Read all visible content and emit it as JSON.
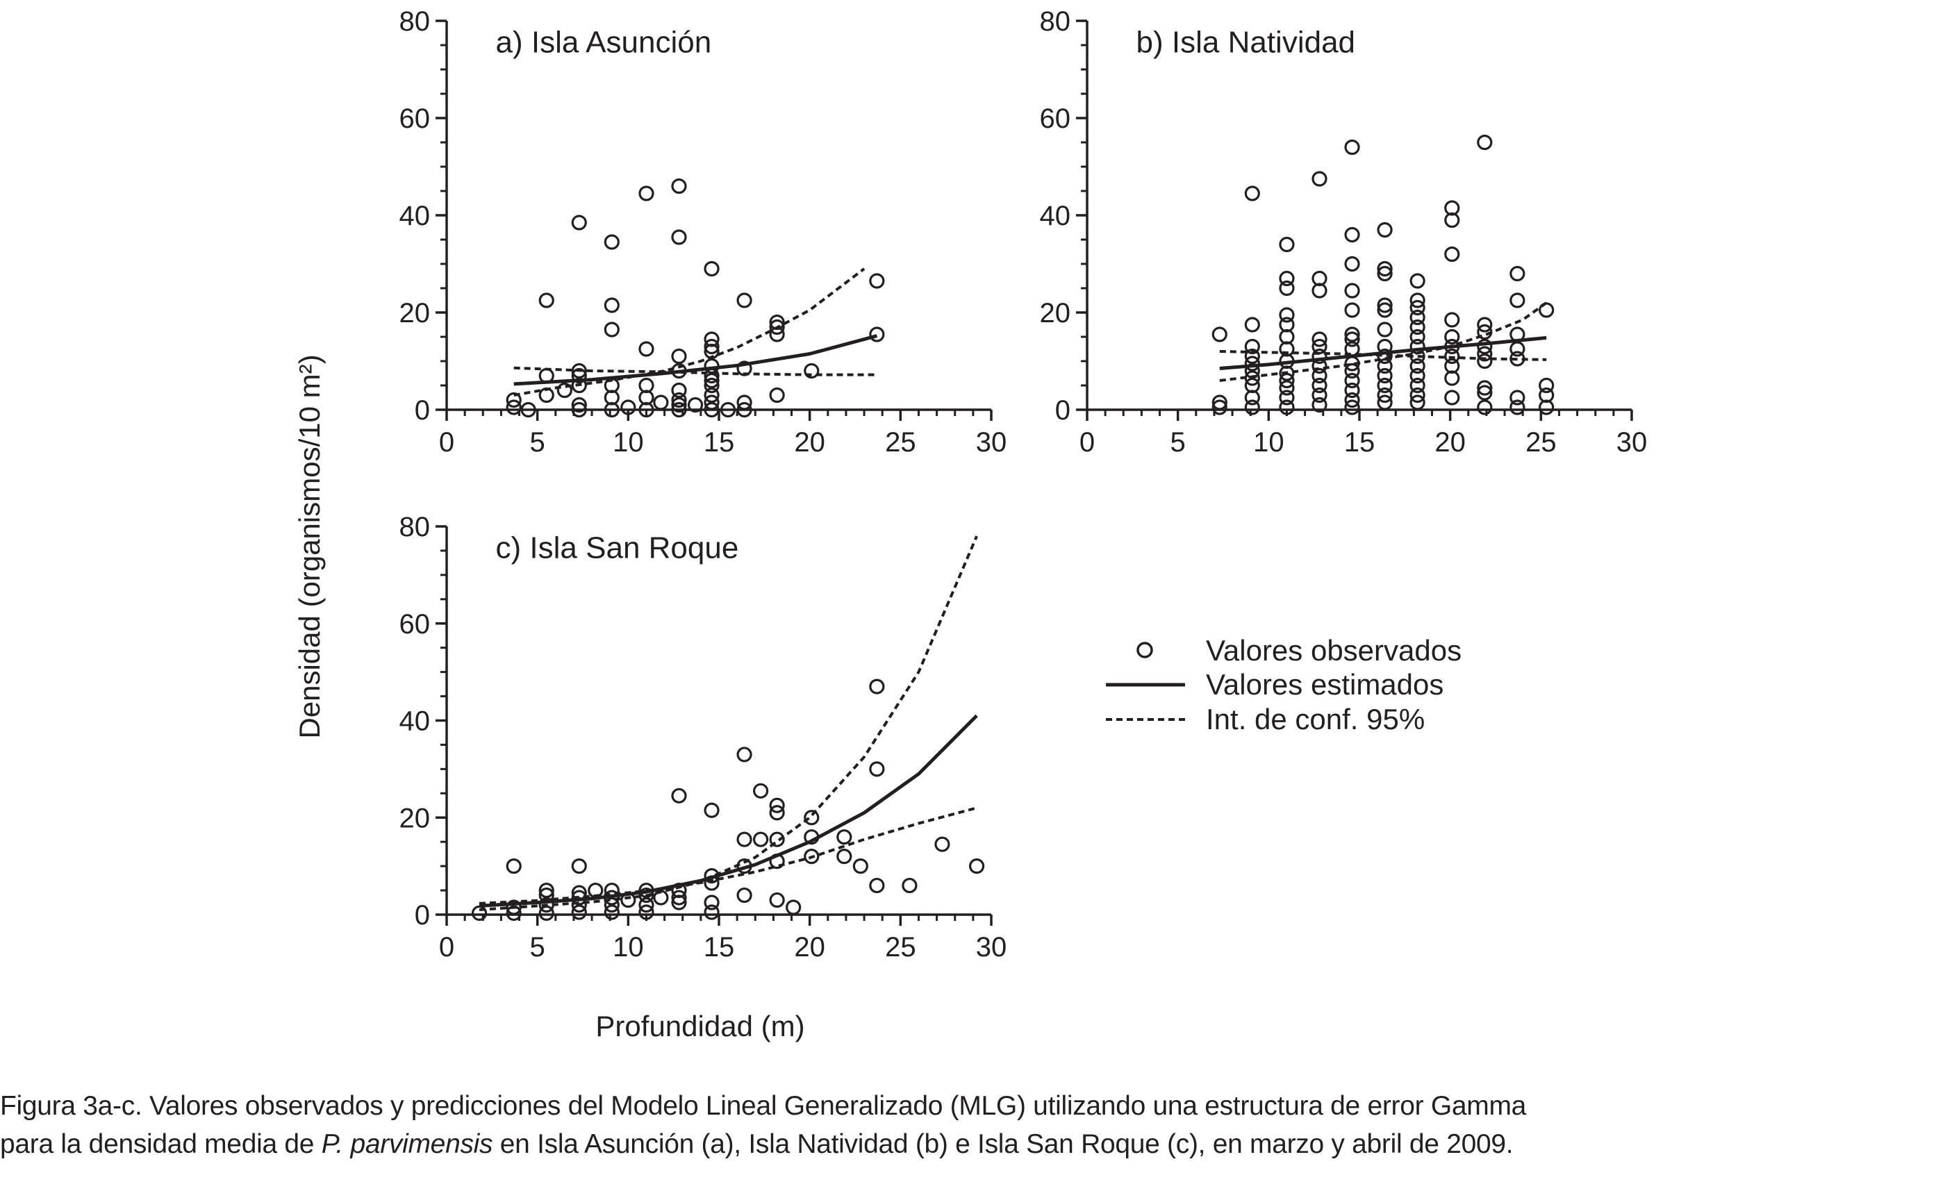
{
  "chart_data": [
    {
      "id": "a",
      "type": "scatter",
      "title": "a) Isla Asunción",
      "xlim": [
        0,
        30
      ],
      "ylim": [
        0,
        80
      ],
      "xticks": [
        "0",
        "5",
        "10",
        "15",
        "20",
        "25",
        "30"
      ],
      "yticks": [
        "0",
        "20",
        "40",
        "60",
        "80"
      ],
      "observed": [
        [
          3.7,
          2
        ],
        [
          3.7,
          0.5
        ],
        [
          4.5,
          0
        ],
        [
          5.5,
          3
        ],
        [
          5.5,
          7
        ],
        [
          5.5,
          22.5
        ],
        [
          6.5,
          4
        ],
        [
          7.3,
          38.5
        ],
        [
          7.3,
          8
        ],
        [
          7.3,
          7
        ],
        [
          7.3,
          5
        ],
        [
          7.3,
          1
        ],
        [
          7.3,
          0
        ],
        [
          9.1,
          34.5
        ],
        [
          9.1,
          21.5
        ],
        [
          9.1,
          16.5
        ],
        [
          9.1,
          5
        ],
        [
          9.1,
          2.5
        ],
        [
          9.1,
          0
        ],
        [
          10,
          0.5
        ],
        [
          11,
          44.5
        ],
        [
          11,
          12.5
        ],
        [
          11,
          5
        ],
        [
          11,
          2.5
        ],
        [
          11,
          0
        ],
        [
          11.8,
          1.5
        ],
        [
          12.8,
          46
        ],
        [
          12.8,
          35.5
        ],
        [
          12.8,
          11
        ],
        [
          12.8,
          8
        ],
        [
          12.8,
          4
        ],
        [
          12.8,
          2
        ],
        [
          12.8,
          1
        ],
        [
          12.8,
          0
        ],
        [
          13.7,
          1
        ],
        [
          14.6,
          29
        ],
        [
          14.6,
          14.5
        ],
        [
          14.6,
          13
        ],
        [
          14.6,
          12
        ],
        [
          14.6,
          9
        ],
        [
          14.6,
          7
        ],
        [
          14.6,
          6
        ],
        [
          14.6,
          5
        ],
        [
          14.6,
          3
        ],
        [
          14.6,
          1.5
        ],
        [
          14.6,
          0
        ],
        [
          15.5,
          0
        ],
        [
          16.4,
          22.5
        ],
        [
          16.4,
          8.5
        ],
        [
          16.4,
          1.5
        ],
        [
          16.4,
          0
        ],
        [
          18.2,
          18
        ],
        [
          18.2,
          17
        ],
        [
          18.2,
          15.5
        ],
        [
          18.2,
          3
        ],
        [
          20.1,
          8
        ],
        [
          23.7,
          26.5
        ],
        [
          23.7,
          15.5
        ]
      ],
      "estimated": [
        [
          3.7,
          5.3
        ],
        [
          8,
          6.2
        ],
        [
          12,
          7.5
        ],
        [
          16,
          9.1
        ],
        [
          20,
          11.5
        ],
        [
          23.7,
          15.2
        ]
      ],
      "ci_upper": [
        [
          3.7,
          3.0
        ],
        [
          6,
          4.5
        ],
        [
          9,
          6.0
        ],
        [
          12,
          8.0
        ],
        [
          14,
          10.0
        ],
        [
          16,
          12.8
        ],
        [
          18,
          16.5
        ],
        [
          20,
          20.5
        ],
        [
          23,
          29.0
        ]
      ],
      "ci_lower": [
        [
          3.7,
          8.6
        ],
        [
          8,
          8.0
        ],
        [
          12,
          7.8
        ],
        [
          16,
          7.4
        ],
        [
          20,
          7.2
        ],
        [
          23.7,
          7.2
        ]
      ]
    },
    {
      "id": "b",
      "type": "scatter",
      "title": "b) Isla Natividad",
      "xlim": [
        0,
        30
      ],
      "ylim": [
        0,
        80
      ],
      "xticks": [
        "0",
        "5",
        "10",
        "15",
        "20",
        "25",
        "30"
      ],
      "yticks": [
        "0",
        "20",
        "40",
        "60",
        "80"
      ],
      "observed": [
        [
          7.3,
          15.5
        ],
        [
          7.3,
          1.5
        ],
        [
          7.3,
          0.5
        ],
        [
          9.1,
          44.5
        ],
        [
          9.1,
          17.5
        ],
        [
          9.1,
          13
        ],
        [
          9.1,
          11
        ],
        [
          9.1,
          9.5
        ],
        [
          9.1,
          8
        ],
        [
          9.1,
          6.5
        ],
        [
          9.1,
          5
        ],
        [
          9.1,
          2.5
        ],
        [
          9.1,
          0.5
        ],
        [
          11,
          34
        ],
        [
          11,
          27
        ],
        [
          11,
          25
        ],
        [
          11,
          19.5
        ],
        [
          11,
          17.5
        ],
        [
          11,
          15
        ],
        [
          11,
          12.5
        ],
        [
          11,
          10
        ],
        [
          11,
          7.5
        ],
        [
          11,
          6
        ],
        [
          11,
          4.5
        ],
        [
          11,
          2.5
        ],
        [
          11,
          0.5
        ],
        [
          12.8,
          47.5
        ],
        [
          12.8,
          27
        ],
        [
          12.8,
          24.5
        ],
        [
          12.8,
          14.5
        ],
        [
          12.8,
          13
        ],
        [
          12.8,
          11
        ],
        [
          12.8,
          9
        ],
        [
          12.8,
          7
        ],
        [
          12.8,
          5
        ],
        [
          12.8,
          3
        ],
        [
          12.8,
          1
        ],
        [
          14.6,
          54
        ],
        [
          14.6,
          36
        ],
        [
          14.6,
          30
        ],
        [
          14.6,
          24.5
        ],
        [
          14.6,
          20.5
        ],
        [
          14.6,
          15.5
        ],
        [
          14.6,
          14.5
        ],
        [
          14.6,
          12.5
        ],
        [
          14.6,
          9.5
        ],
        [
          14.6,
          8
        ],
        [
          14.6,
          6
        ],
        [
          14.6,
          4
        ],
        [
          14.6,
          2
        ],
        [
          14.6,
          0.5
        ],
        [
          16.4,
          37
        ],
        [
          16.4,
          29
        ],
        [
          16.4,
          28
        ],
        [
          16.4,
          21.5
        ],
        [
          16.4,
          20.5
        ],
        [
          16.4,
          16.5
        ],
        [
          16.4,
          13
        ],
        [
          16.4,
          11
        ],
        [
          16.4,
          9
        ],
        [
          16.4,
          7
        ],
        [
          16.4,
          5
        ],
        [
          16.4,
          3
        ],
        [
          16.4,
          1.5
        ],
        [
          18.2,
          26.5
        ],
        [
          18.2,
          22.5
        ],
        [
          18.2,
          21
        ],
        [
          18.2,
          19
        ],
        [
          18.2,
          17
        ],
        [
          18.2,
          15
        ],
        [
          18.2,
          13
        ],
        [
          18.2,
          11
        ],
        [
          18.2,
          9
        ],
        [
          18.2,
          7
        ],
        [
          18.2,
          5
        ],
        [
          18.2,
          3
        ],
        [
          18.2,
          1.5
        ],
        [
          20.1,
          41.5
        ],
        [
          20.1,
          39
        ],
        [
          20.1,
          32
        ],
        [
          20.1,
          18.5
        ],
        [
          20.1,
          15
        ],
        [
          20.1,
          13
        ],
        [
          20.1,
          11
        ],
        [
          20.1,
          9
        ],
        [
          20.1,
          6.5
        ],
        [
          20.1,
          2.5
        ],
        [
          21.9,
          55
        ],
        [
          21.9,
          17.5
        ],
        [
          21.9,
          16
        ],
        [
          21.9,
          13
        ],
        [
          21.9,
          11.5
        ],
        [
          21.9,
          10
        ],
        [
          21.9,
          4.5
        ],
        [
          21.9,
          3.5
        ],
        [
          21.9,
          0.5
        ],
        [
          23.7,
          28
        ],
        [
          23.7,
          22.5
        ],
        [
          23.7,
          15.5
        ],
        [
          23.7,
          12.5
        ],
        [
          23.7,
          10.5
        ],
        [
          23.7,
          2.5
        ],
        [
          23.7,
          0.5
        ],
        [
          25.3,
          20.5
        ],
        [
          25.3,
          5
        ],
        [
          25.3,
          3
        ],
        [
          25.3,
          0.5
        ]
      ],
      "estimated": [
        [
          7.3,
          8.5
        ],
        [
          10,
          9.3
        ],
        [
          14,
          10.8
        ],
        [
          18,
          12.3
        ],
        [
          22,
          13.6
        ],
        [
          25.3,
          14.8
        ]
      ],
      "ci_upper": [
        [
          7.3,
          6.0
        ],
        [
          10,
          7.2
        ],
        [
          14,
          9.0
        ],
        [
          18,
          11.5
        ],
        [
          20,
          13.0
        ],
        [
          22,
          15.5
        ],
        [
          24,
          18.5
        ],
        [
          25.3,
          22.0
        ]
      ],
      "ci_lower": [
        [
          7.3,
          12.0
        ],
        [
          10,
          11.8
        ],
        [
          14,
          11.5
        ],
        [
          18,
          11.0
        ],
        [
          22,
          10.5
        ],
        [
          25.3,
          10.3
        ]
      ]
    },
    {
      "id": "c",
      "type": "scatter",
      "title": "c) Isla San Roque",
      "xlim": [
        0,
        30
      ],
      "ylim": [
        0,
        80
      ],
      "xticks": [
        "0",
        "5",
        "10",
        "15",
        "20",
        "25",
        "30"
      ],
      "yticks": [
        "0",
        "20",
        "40",
        "60",
        "80"
      ],
      "observed": [
        [
          1.8,
          0.3
        ],
        [
          3.7,
          10
        ],
        [
          3.7,
          1.5
        ],
        [
          3.7,
          0.3
        ],
        [
          5.5,
          5
        ],
        [
          5.5,
          4
        ],
        [
          5.5,
          2
        ],
        [
          5.5,
          0.3
        ],
        [
          7.3,
          10
        ],
        [
          7.3,
          4.5
        ],
        [
          7.3,
          3.5
        ],
        [
          7.3,
          2
        ],
        [
          7.3,
          0.5
        ],
        [
          8.2,
          5
        ],
        [
          9.1,
          5
        ],
        [
          9.1,
          3.5
        ],
        [
          9.1,
          2
        ],
        [
          9.1,
          0.5
        ],
        [
          10,
          3
        ],
        [
          11,
          5
        ],
        [
          11,
          4
        ],
        [
          11,
          2
        ],
        [
          11,
          0.5
        ],
        [
          11.8,
          3.5
        ],
        [
          12.8,
          24.5
        ],
        [
          12.8,
          5
        ],
        [
          12.8,
          3.5
        ],
        [
          12.8,
          2.5
        ],
        [
          14.6,
          21.5
        ],
        [
          14.6,
          8
        ],
        [
          14.6,
          6.5
        ],
        [
          14.6,
          2.5
        ],
        [
          14.6,
          0.5
        ],
        [
          16.4,
          33
        ],
        [
          16.4,
          15.5
        ],
        [
          16.4,
          10
        ],
        [
          16.4,
          4
        ],
        [
          17.3,
          25.5
        ],
        [
          17.3,
          15.5
        ],
        [
          18.2,
          22.5
        ],
        [
          18.2,
          21
        ],
        [
          18.2,
          15.5
        ],
        [
          18.2,
          11
        ],
        [
          18.2,
          3
        ],
        [
          19.1,
          1.5
        ],
        [
          20.1,
          20
        ],
        [
          20.1,
          16
        ],
        [
          20.1,
          12
        ],
        [
          21.9,
          16
        ],
        [
          21.9,
          12
        ],
        [
          22.8,
          10
        ],
        [
          23.7,
          47
        ],
        [
          23.7,
          30
        ],
        [
          23.7,
          6
        ],
        [
          25.5,
          6
        ],
        [
          27.3,
          14.5
        ],
        [
          29.2,
          10
        ]
      ],
      "estimated": [
        [
          1.8,
          1.8
        ],
        [
          5,
          2.5
        ],
        [
          8,
          3.3
        ],
        [
          11,
          4.7
        ],
        [
          14,
          7.0
        ],
        [
          17,
          10.3
        ],
        [
          20,
          15.0
        ],
        [
          23,
          21.0
        ],
        [
          26,
          29.0
        ],
        [
          29.2,
          41.0
        ]
      ],
      "ci_upper": [
        [
          1.8,
          1.0
        ],
        [
          5,
          1.8
        ],
        [
          8,
          2.6
        ],
        [
          11,
          3.9
        ],
        [
          14,
          6.8
        ],
        [
          17,
          11.8
        ],
        [
          20,
          20.0
        ],
        [
          23,
          32.5
        ],
        [
          26,
          50.0
        ],
        [
          29.2,
          78.0
        ]
      ],
      "ci_lower": [
        [
          1.8,
          2.3
        ],
        [
          5,
          2.9
        ],
        [
          8,
          3.8
        ],
        [
          11,
          4.9
        ],
        [
          14,
          6.6
        ],
        [
          17,
          8.8
        ],
        [
          20,
          11.7
        ],
        [
          23,
          15.5
        ],
        [
          26,
          18.8
        ],
        [
          29.2,
          22.0
        ]
      ]
    }
  ],
  "axes": {
    "ylabel": "Densidad (organismos/10 m²)",
    "xlabel": "Profundidad (m)"
  },
  "legend": {
    "observed": "Valores observados",
    "estimated": "Valores estimados",
    "ci": "Int. de conf. 95%"
  },
  "caption": {
    "line1": "Figura 3a-c. Valores observados y predicciones del Modelo Lineal Generalizado (MLG) utilizando una estructura de error Gamma",
    "line2_pre": "para la densidad media de ",
    "line2_species": "P. parvimensis",
    "line2_post": " en Isla Asunción (a), Isla Natividad (b) e Isla San Roque (c), en marzo y abril de 2009."
  },
  "colors": {
    "ink": "#231f20",
    "background": "#ffffff"
  }
}
